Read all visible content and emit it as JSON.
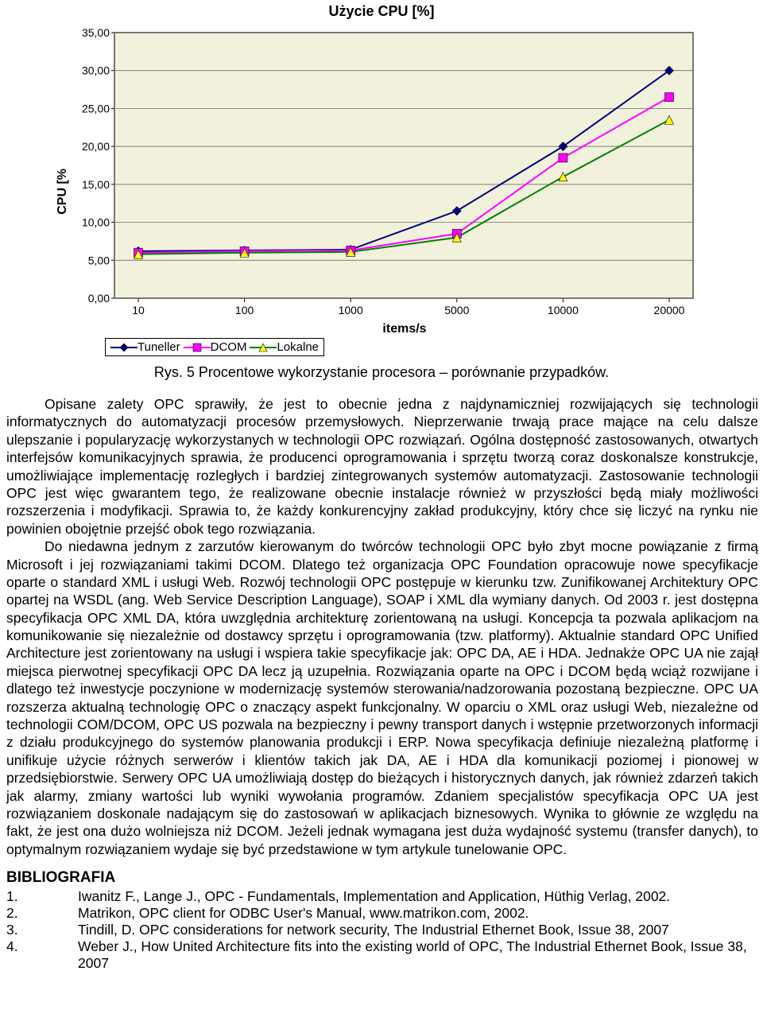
{
  "chart": {
    "type": "line",
    "title": "Użycie CPU [%]",
    "ylabel": "CPU [%",
    "xlabel": "items/s",
    "x_categories": [
      "10",
      "100",
      "1000",
      "5000",
      "10000",
      "20000"
    ],
    "y_ticks": [
      "0,00",
      "5,00",
      "10,00",
      "15,00",
      "20,00",
      "25,00",
      "30,00",
      "35,00"
    ],
    "ylim": [
      0,
      35
    ],
    "plot_background": "#f2f2dc",
    "grid_color": "#555555",
    "border_color": "#666666",
    "marker_size": 11,
    "line_width": 2,
    "series": [
      {
        "name": "Tuneller",
        "color": "#000080",
        "marker": "diamond",
        "values": [
          6.2,
          6.3,
          6.4,
          11.5,
          20.0,
          30.0
        ]
      },
      {
        "name": "DCOM",
        "color": "#ff00ff",
        "marker": "square",
        "values": [
          6.0,
          6.2,
          6.3,
          8.5,
          18.5,
          26.5
        ]
      },
      {
        "name": "Lokalne",
        "color": "#ffff00",
        "marker": "triangle",
        "values": [
          5.8,
          6.0,
          6.1,
          8.0,
          16.0,
          23.5
        ]
      }
    ],
    "series_outline_colors": {
      "Lokalne_line": "#008000"
    },
    "title_fontsize": 18,
    "label_fontsize": 16,
    "tick_fontsize": 14
  },
  "caption": "Rys. 5  Procentowe wykorzystanie procesora – porównanie przypadków.",
  "paragraphs": [
    "Opisane zalety OPC sprawiły, że jest to obecnie jedna z najdynamiczniej rozwijających się technologii informatycznych do automatyzacji procesów przemysłowych. Nieprzerwanie trwają prace mające na celu dalsze ulepszanie i popularyzację wykorzystanych w technologii OPC rozwiązań. Ogólna dostępność zastosowanych, otwartych interfejsów komunikacyjnych sprawia, że producenci oprogramowania i sprzętu tworzą coraz doskonalsze konstrukcje, umożliwiające implementację rozległych i bardziej zintegrowanych systemów automatyzacji. Zastosowanie technologii OPC jest więc gwarantem tego, że realizowane obecnie instalacje również w przyszłości będą miały możliwości rozszerzenia i modyfikacji. Sprawia to, że każdy konkurencyjny zakład produkcyjny, który chce się liczyć na rynku nie powinien obojętnie przejść obok tego rozwiązania.",
    "Do niedawna jednym z zarzutów kierowanym do twórców technologii OPC było zbyt mocne powiązanie z firmą Microsoft i jej rozwiązaniami takimi DCOM. Dlatego też organizacja OPC Foundation opracowuje nowe specyfikacje oparte o standard XML i usługi Web. Rozwój technologii OPC postępuje w kierunku tzw. Zunifikowanej Architektury OPC opartej na WSDL (ang. Web Service Description Language), SOAP i XML dla wymiany danych. Od 2003 r. jest dostępna specyfikacja OPC XML DA, która uwzględnia architekturę zorientowaną na usługi. Koncepcja ta pozwala aplikacjom na komunikowanie się niezależnie od dostawcy sprzętu i oprogramowania (tzw. platformy). Aktualnie standard OPC Unified Architecture jest zorientowany na usługi i wspiera takie specyfikacje jak: OPC DA, AE i HDA. Jednakże OPC UA nie zajął miejsca pierwotnej specyfikacji OPC DA lecz ją uzupełnia. Rozwiązania oparte na OPC i DCOM będą wciąż rozwijane i dlatego też inwestycje poczynione w modernizację systemów sterowania/nadzorowania pozostaną bezpieczne. OPC UA rozszerza aktualną technologię OPC o znaczący aspekt funkcjonalny. W oparciu o XML oraz usługi Web, niezależne od technologii COM/DCOM, OPC US pozwala na bezpieczny i pewny transport danych i wstępnie przetworzonych informacji z działu produkcyjnego do systemów planowania produkcji i ERP. Nowa specyfikacja definiuje niezależną platformę i unifikuje użycie różnych serwerów i klientów takich jak DA, AE i HDA dla komunikacji poziomej i pionowej w przedsiębiorstwie. Serwery OPC UA umożliwiają dostęp do bieżących i historycznych danych, jak również zdarzeń takich jak alarmy, zmiany wartości lub wyniki wywołania programów. Zdaniem specjalistów specyfikacja OPC UA jest rozwiązaniem doskonale nadającym się do zastosowań w aplikacjach biznesowych. Wynika to głównie ze względu na fakt, że jest ona dużo wolniejsza niż DCOM. Jeżeli jednak wymagana jest duża wydajność systemu (transfer danych), to optymalnym rozwiązaniem wydaje się być przedstawione w tym artykule tunelowanie OPC."
  ],
  "bibliography_heading": "BIBLIOGRAFIA",
  "bibliography": [
    "Iwanitz F., Lange J., OPC - Fundamentals, Implementation and Application, Hüthig Verlag, 2002.",
    "Matrikon, OPC client for ODBC User's Manual, www.matrikon.com, 2002.",
    "Tindill, D. OPC considerations for network security, The Industrial Ethernet Book, Issue 38, 2007",
    "Weber J., How United Architecture fits into the existing world of OPC, The Industrial Ethernet Book, Issue 38, 2007"
  ]
}
